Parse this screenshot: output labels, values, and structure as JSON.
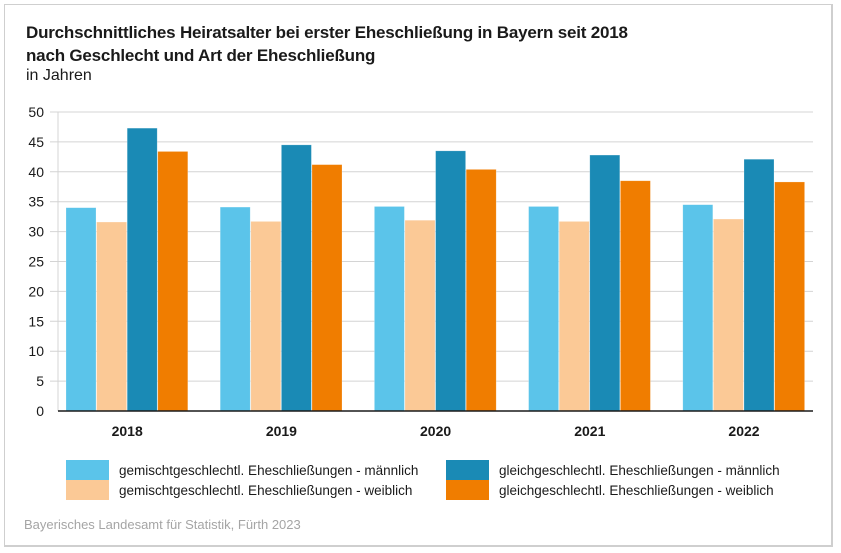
{
  "title": "Durchschnittliches Heiratsalter bei erster Eheschließung in Bayern seit 2018",
  "subtitle": "nach Geschlecht und Art der Eheschließung",
  "unit": "in Jahren",
  "source": "Bayerisches Landesamt für Statistik, Fürth 2023",
  "chart_data": {
    "type": "bar",
    "title": "Durchschnittliches Heiratsalter bei erster Eheschließung in Bayern seit 2018 nach Geschlecht und Art der Eheschließung",
    "xlabel": "",
    "ylabel": "in Jahren",
    "ylim": [
      0,
      50
    ],
    "yticks": [
      0,
      5,
      10,
      15,
      20,
      25,
      30,
      35,
      40,
      45,
      50
    ],
    "grid": true,
    "legend_position": "bottom",
    "categories": [
      "2018",
      "2019",
      "2020",
      "2021",
      "2022"
    ],
    "series": [
      {
        "name": "gemischtgeschlechtl. Eheschließungen - männlich",
        "color": "#5bc4ea",
        "values": [
          34.0,
          34.1,
          34.2,
          34.2,
          34.5
        ]
      },
      {
        "name": "gemischtgeschlechtl. Eheschließungen - weiblich",
        "color": "#fbc996",
        "values": [
          31.6,
          31.7,
          31.9,
          31.7,
          32.1
        ]
      },
      {
        "name": "gleichgeschlechtl. Eheschließungen - männlich",
        "color": "#1a8ab5",
        "values": [
          47.3,
          44.5,
          43.5,
          42.8,
          42.1
        ]
      },
      {
        "name": "gleichgeschlechtl. Eheschließungen - weiblich",
        "color": "#f07d00",
        "values": [
          43.4,
          41.2,
          40.4,
          38.5,
          38.3
        ]
      }
    ]
  }
}
